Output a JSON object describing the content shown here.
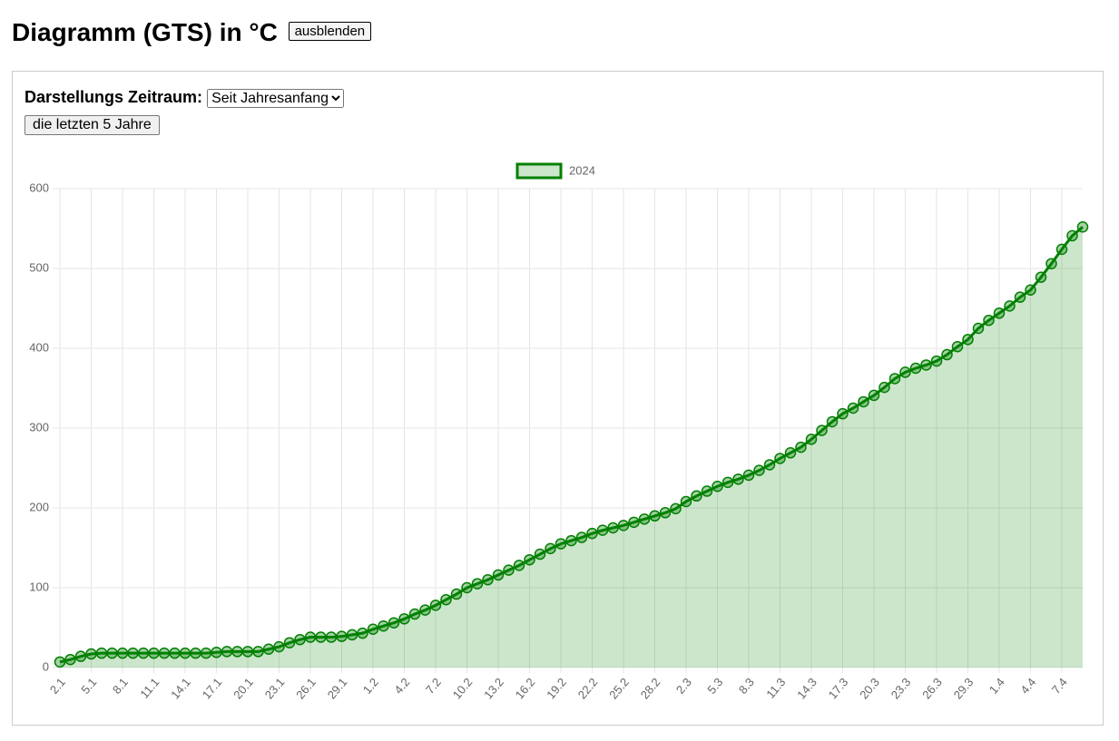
{
  "header": {
    "title": "Diagramm (GTS) in °C",
    "button": "ausblenden"
  },
  "controls": {
    "label": "Darstellungs Zeitraum:",
    "select": "Seit Jahresanfang",
    "button": "die letzten 5 Jahre"
  },
  "chart_data": {
    "type": "area",
    "categories": [
      "2.1",
      null,
      null,
      "5.1",
      null,
      null,
      "8.1",
      null,
      null,
      "11.1",
      null,
      null,
      "14.1",
      null,
      null,
      "17.1",
      null,
      null,
      "20.1",
      null,
      null,
      "23.1",
      null,
      null,
      "26.1",
      null,
      null,
      "29.1",
      null,
      null,
      "1.2",
      null,
      null,
      "4.2",
      null,
      null,
      "7.2",
      null,
      null,
      "10.2",
      null,
      null,
      "13.2",
      null,
      null,
      "16.2",
      null,
      null,
      "19.2",
      null,
      null,
      "22.2",
      null,
      null,
      "25.2",
      null,
      null,
      "28.2",
      null,
      null,
      "2.3",
      null,
      null,
      "5.3",
      null,
      null,
      "8.3",
      null,
      null,
      "11.3",
      null,
      null,
      "14.3",
      null,
      null,
      "17.3",
      null,
      null,
      "20.3",
      null,
      null,
      "23.3",
      null,
      null,
      "26.3",
      null,
      null,
      "29.3",
      null,
      null,
      "1.4",
      null,
      null,
      "4.4",
      null,
      null,
      "7.4",
      null,
      null
    ],
    "series": [
      {
        "name": "2024",
        "color": "#008000",
        "values": [
          7,
          10,
          14,
          17,
          18,
          18,
          18,
          18,
          18,
          18,
          18,
          18,
          18,
          18,
          18,
          19,
          20,
          20,
          20,
          20,
          23,
          26,
          31,
          35,
          38,
          38,
          38,
          39,
          41,
          43,
          48,
          52,
          56,
          61,
          67,
          72,
          78,
          85,
          92,
          100,
          105,
          110,
          116,
          122,
          128,
          135,
          142,
          149,
          155,
          159,
          163,
          168,
          172,
          175,
          178,
          182,
          186,
          190,
          194,
          199,
          208,
          215,
          221,
          227,
          232,
          236,
          241,
          247,
          254,
          262,
          269,
          276,
          286,
          297,
          308,
          318,
          325,
          333,
          341,
          351,
          362,
          370,
          375,
          379,
          384,
          392,
          402,
          411,
          425,
          435,
          444,
          453,
          464,
          473,
          489,
          506,
          524,
          541,
          552
        ]
      }
    ],
    "ylim": [
      0,
      600
    ],
    "yticks": [
      0,
      100,
      200,
      300,
      400,
      500,
      600
    ],
    "grid": true
  }
}
